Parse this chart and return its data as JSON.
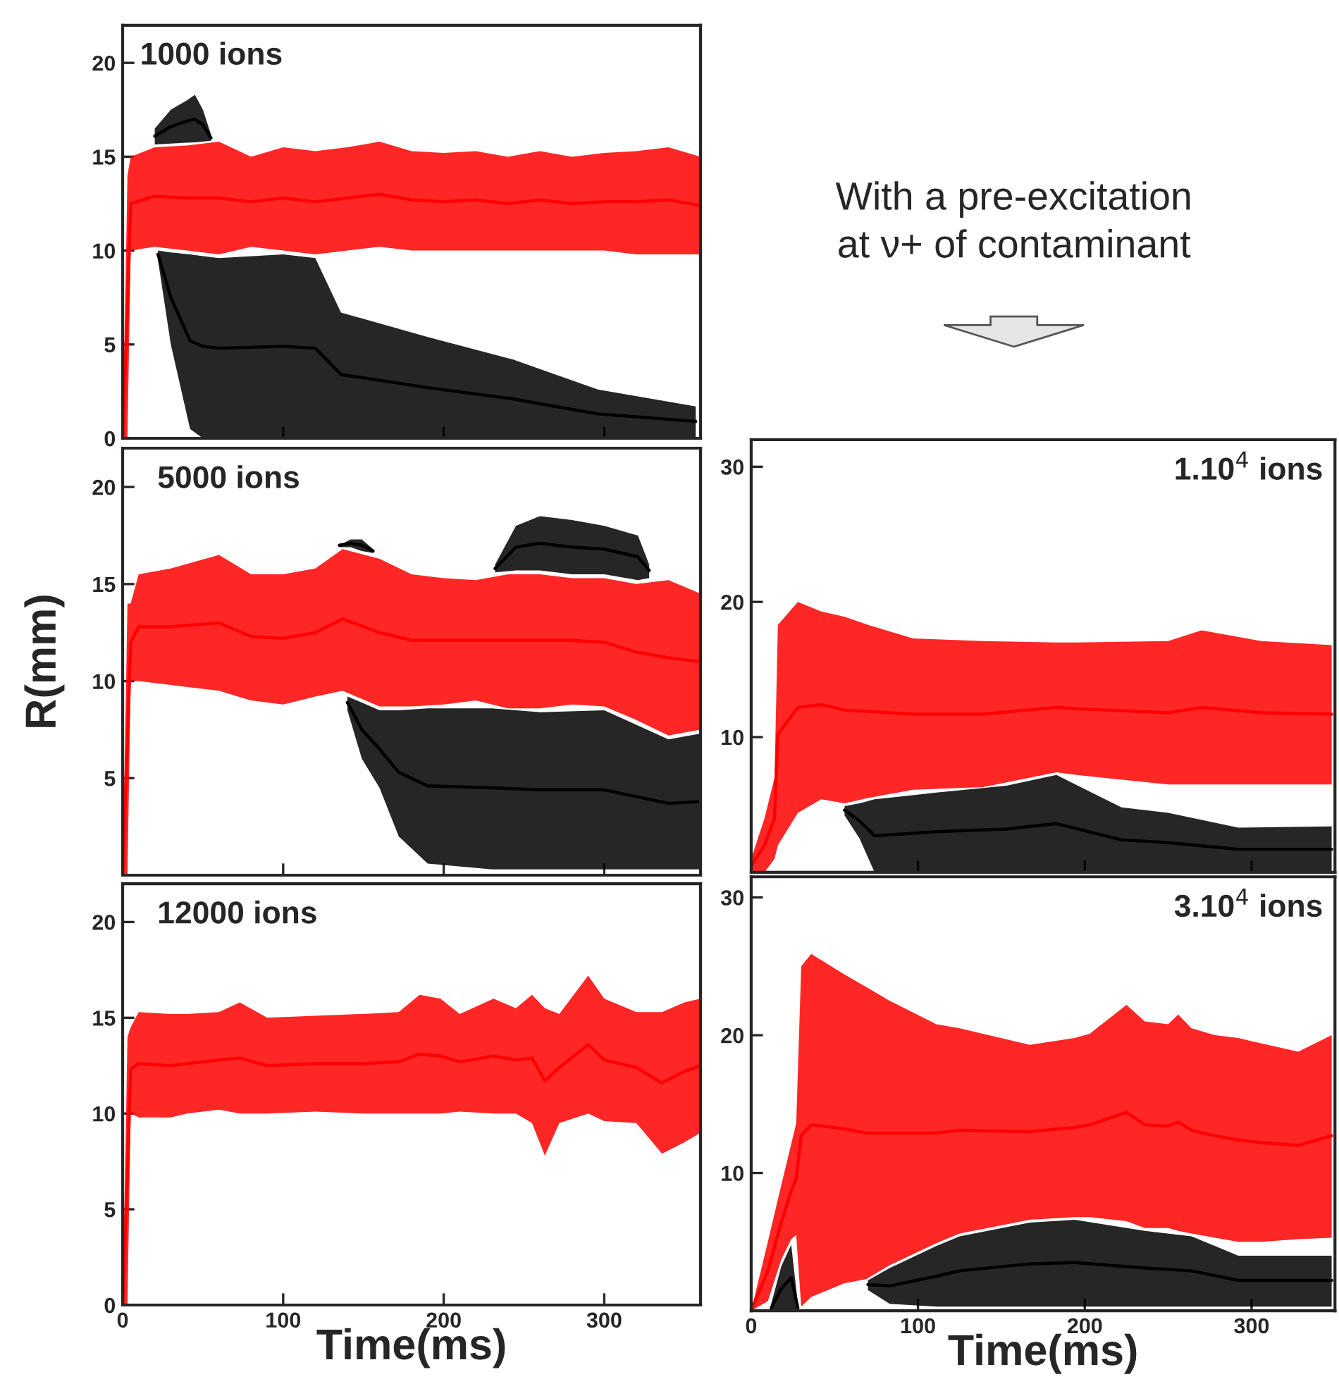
{
  "chart_data": [
    {
      "type": "line",
      "title": "1000 ions",
      "xlim": [
        0,
        360
      ],
      "ylim": [
        0,
        22
      ],
      "xticks": [
        0,
        100,
        200,
        300
      ],
      "yticks": [
        0,
        5,
        10,
        15,
        20
      ],
      "tick_labels": "y",
      "series": [
        {
          "color": "#000000",
          "x": [
            20,
            30,
            40,
            45,
            50,
            55
          ],
          "values": [
            16.1,
            16.6,
            16.9,
            17,
            16.7,
            16
          ],
          "lower": [
            15.65,
            15.7,
            15.75,
            15.77,
            15.8,
            15.85
          ],
          "upper": [
            16.5,
            17.5,
            18,
            18.3,
            17.5,
            16.2
          ]
        },
        {
          "color": "#000000",
          "x": [
            22,
            30,
            42,
            50,
            60,
            100,
            120,
            136,
            190,
            243,
            296,
            357
          ],
          "values": [
            9.8,
            7.5,
            5.2,
            4.9,
            4.8,
            4.9,
            4.8,
            3.4,
            2.7,
            2.1,
            1.3,
            0.9
          ],
          "lower": [
            9.5,
            5,
            0.5,
            0,
            0,
            0,
            0,
            0,
            0,
            0,
            0,
            0
          ],
          "upper": [
            10,
            9.9,
            9.8,
            9.7,
            9.6,
            9.8,
            9.6,
            6.7,
            5.4,
            4.2,
            2.6,
            1.7
          ]
        },
        {
          "color": "#ff0000",
          "x": [
            0,
            3,
            5,
            20,
            40,
            60,
            80,
            100,
            120,
            140,
            160,
            180,
            200,
            220,
            240,
            260,
            280,
            300,
            320,
            340,
            360
          ],
          "values": [
            0,
            7,
            12.5,
            12.9,
            12.8,
            12.8,
            12.6,
            12.8,
            12.6,
            12.8,
            13,
            12.7,
            12.6,
            12.7,
            12.5,
            12.7,
            12.5,
            12.6,
            12.6,
            12.7,
            12.4
          ],
          "lower": [
            0,
            0,
            10,
            10.2,
            10,
            9.8,
            10.2,
            10,
            9.8,
            10,
            10.2,
            10,
            10,
            10,
            10,
            10,
            10,
            10,
            9.8,
            9.8,
            9.8
          ],
          "upper": [
            0,
            14,
            15,
            15.5,
            15.6,
            15.8,
            15.0,
            15.5,
            15.3,
            15.5,
            15.8,
            15.3,
            15.2,
            15.3,
            15.0,
            15.3,
            15.0,
            15.2,
            15.3,
            15.5,
            15.0
          ]
        }
      ]
    },
    {
      "type": "line",
      "title": "5000 ions",
      "ylabel": "R(mm)",
      "xlim": [
        0,
        360
      ],
      "ylim": [
        0,
        22
      ],
      "xticks": [
        0,
        100,
        200,
        300
      ],
      "yticks": [
        5,
        10,
        15,
        20
      ],
      "tick_labels": "y",
      "series": [
        {
          "color": "#000000",
          "x": [
            135,
            142,
            149,
            156
          ],
          "values": [
            17,
            17.1,
            17,
            16.7
          ],
          "lower": [
            16.9,
            16.9,
            16.7,
            16.6
          ],
          "upper": [
            17,
            17.3,
            17.3,
            16.8
          ]
        },
        {
          "color": "#000000",
          "x": [
            232,
            245,
            260,
            280,
            300,
            321,
            328
          ],
          "values": [
            15.8,
            16.9,
            17.1,
            16.9,
            16.8,
            16.4,
            15.7
          ],
          "lower": [
            15.6,
            15.7,
            15.7,
            15.5,
            15.5,
            15.2,
            15.3
          ],
          "upper": [
            16,
            18,
            18.5,
            18.3,
            18,
            17.5,
            16
          ]
        },
        {
          "color": "#000000",
          "x": [
            140,
            149,
            160,
            172,
            190,
            230,
            260,
            300,
            340,
            360
          ],
          "values": [
            8.9,
            7.5,
            6.5,
            5.3,
            4.6,
            4.5,
            4.4,
            4.4,
            3.7,
            3.8
          ],
          "lower": [
            8.5,
            6,
            4.5,
            2,
            0.6,
            0.3,
            0.3,
            0.3,
            0.3,
            0.3
          ],
          "upper": [
            9.2,
            8.9,
            8.5,
            8.5,
            8.6,
            8.6,
            8.4,
            8.5,
            7.0,
            7.3
          ]
        },
        {
          "color": "#ff0000",
          "x": [
            0,
            3,
            5,
            10,
            30,
            60,
            80,
            100,
            120,
            137,
            160,
            180,
            200,
            220,
            240,
            260,
            280,
            300,
            320,
            340,
            360
          ],
          "values": [
            0,
            7,
            12,
            12.8,
            12.8,
            13,
            12.3,
            12.2,
            12.5,
            13.2,
            12.5,
            12.1,
            12.1,
            12.1,
            12.1,
            12.1,
            12.1,
            12,
            11.5,
            11.2,
            11
          ],
          "lower": [
            0,
            0,
            10,
            10,
            9.8,
            9.5,
            9.0,
            8.8,
            9.2,
            9.5,
            8.7,
            8.7,
            8.8,
            9.0,
            8.6,
            8.6,
            8.8,
            8.7,
            8.0,
            7.2,
            7.5
          ],
          "upper": [
            0,
            14,
            14,
            15.5,
            15.8,
            16.5,
            15.5,
            15.5,
            15.8,
            16.8,
            16.3,
            15.5,
            15.3,
            15.2,
            15.5,
            15.5,
            15.3,
            15.3,
            15.0,
            15.2,
            14.5
          ]
        }
      ]
    },
    {
      "type": "line",
      "title": "12000 ions",
      "xlabel": "Time(ms)",
      "xlim": [
        0,
        360
      ],
      "ylim": [
        0,
        22
      ],
      "xticks": [
        0,
        100,
        200,
        300
      ],
      "yticks": [
        0,
        5,
        10,
        15,
        20
      ],
      "series": [
        {
          "color": "#ff0000",
          "x": [
            0,
            3,
            5,
            10,
            30,
            40,
            60,
            73,
            90,
            120,
            150,
            172,
            185,
            198,
            210,
            231,
            245,
            255,
            263,
            272,
            290,
            300,
            320,
            336,
            350,
            360
          ],
          "values": [
            0,
            7,
            12.3,
            12.6,
            12.5,
            12.6,
            12.8,
            12.9,
            12.5,
            12.6,
            12.6,
            12.7,
            13.1,
            13,
            12.7,
            13,
            12.8,
            12.9,
            11.7,
            12.4,
            13.6,
            12.8,
            12.4,
            11.6,
            12.2,
            12.5
          ],
          "lower": [
            0,
            0,
            10,
            9.8,
            9.8,
            10,
            10.2,
            10,
            10,
            10.1,
            10,
            10,
            10,
            10,
            10.1,
            10,
            10,
            9.5,
            7.8,
            9.5,
            10,
            9.6,
            9.5,
            7.9,
            8.5,
            9.0
          ],
          "upper": [
            0,
            14,
            14.5,
            15.3,
            15.2,
            15.2,
            15.3,
            15.8,
            15.0,
            15.1,
            15.2,
            15.3,
            16.2,
            16.0,
            15.2,
            16.0,
            15.5,
            16.2,
            15.5,
            15.2,
            17.2,
            16.0,
            15.3,
            15.3,
            15.8,
            16.0
          ]
        }
      ]
    },
    {
      "type": "line",
      "title": "1.10$^{4}$ ions",
      "subtitle": "With a pre-excitation\nat ν+ of contaminant",
      "xlim": [
        0,
        350
      ],
      "ylim": [
        0,
        32
      ],
      "xticks": [
        0,
        100,
        200,
        300
      ],
      "yticks": [
        10,
        20,
        30
      ],
      "tick_labels": "y",
      "series": [
        {
          "color": "#000000",
          "x": [
            56,
            65,
            74,
            111,
            153,
            183,
            222,
            250,
            292,
            348
          ],
          "values": [
            4.6,
            3.8,
            2.7,
            3,
            3.2,
            3.6,
            2.4,
            2.2,
            1.7,
            1.7
          ],
          "lower": [
            4.2,
            2.5,
            0,
            0,
            0,
            0,
            0,
            0,
            0,
            0
          ],
          "upper": [
            4.9,
            5.1,
            5.4,
            5.9,
            6.4,
            7.2,
            4.8,
            4.4,
            3.3,
            3.4
          ]
        },
        {
          "color": "#ff0000",
          "x": [
            0,
            8,
            14,
            16,
            28,
            42,
            56,
            70,
            97,
            139,
            183,
            195,
            250,
            270,
            306,
            348
          ],
          "values": [
            0.5,
            2,
            4,
            10.2,
            12.2,
            12.4,
            12,
            11.9,
            11.7,
            11.7,
            12.2,
            12.1,
            11.8,
            12.2,
            11.8,
            11.7
          ],
          "lower": [
            0,
            0,
            1,
            2,
            4.4,
            5.4,
            5.1,
            5.5,
            6.1,
            6.3,
            7.4,
            7.2,
            6.5,
            6.5,
            6.5,
            6.5
          ],
          "upper": [
            1,
            4,
            7,
            18.3,
            20,
            19.3,
            18.9,
            18.3,
            17.3,
            17.1,
            17,
            17,
            17.1,
            17.9,
            17.1,
            16.8
          ]
        }
      ]
    },
    {
      "type": "line",
      "title": "3.10$^{4}$ ions",
      "xlabel": "Time(ms)",
      "xlim": [
        0,
        350
      ],
      "ylim": [
        0,
        31.5
      ],
      "xticks": [
        0,
        100,
        200,
        300
      ],
      "yticks": [
        10,
        20,
        30
      ],
      "series": [
        {
          "color": "#000000",
          "x": [
            12,
            18,
            24,
            28
          ],
          "values": [
            0.2,
            1.6,
            2.4,
            0.2
          ],
          "lower": [
            0,
            0,
            0,
            0
          ],
          "upper": [
            0.5,
            3.2,
            4.8,
            0.5
          ]
        },
        {
          "color": "#000000",
          "x": [
            70,
            83,
            111,
            125,
            167,
            194,
            236,
            264,
            292,
            348
          ],
          "values": [
            1.9,
            1.8,
            2.5,
            2.9,
            3.4,
            3.5,
            3.1,
            2.9,
            2.2,
            2.2
          ],
          "lower": [
            1.5,
            0.5,
            0.3,
            0.3,
            0.3,
            0.3,
            0.3,
            0.3,
            0.3,
            0.3
          ],
          "upper": [
            2.2,
            3.1,
            4.7,
            5.4,
            6.4,
            6.6,
            5.8,
            5.4,
            4.0,
            4.0
          ]
        },
        {
          "color": "#ff0000",
          "x": [
            0,
            10,
            18,
            24,
            27,
            30,
            36,
            56,
            69,
            83,
            111,
            125,
            167,
            194,
            203,
            225,
            236,
            250,
            256,
            264,
            278,
            292,
            306,
            328,
            348
          ],
          "values": [
            0,
            2.9,
            6.4,
            8.7,
            9.6,
            12.7,
            13.5,
            13.2,
            12.9,
            12.9,
            12.9,
            13.1,
            13,
            13.3,
            13.5,
            14.4,
            13.5,
            13.4,
            13.7,
            13.1,
            12.7,
            12.4,
            12.2,
            12,
            12.7
          ],
          "lower": [
            0,
            0.7,
            3.7,
            5.2,
            5.5,
            0.3,
            1,
            2,
            2.3,
            3.3,
            4.9,
            5.6,
            6.6,
            6.8,
            6.8,
            6.5,
            6.0,
            6.0,
            5.8,
            5.6,
            5.3,
            5.0,
            5.0,
            5.2,
            5.3
          ],
          "upper": [
            0,
            5,
            9.1,
            12.1,
            13.6,
            25,
            25.9,
            24.4,
            23.5,
            22.5,
            20.8,
            20.5,
            19.3,
            19.8,
            20.1,
            22.2,
            21,
            20.8,
            21.5,
            20.5,
            20,
            19.8,
            19.4,
            18.8,
            20
          ]
        }
      ]
    }
  ]
}
